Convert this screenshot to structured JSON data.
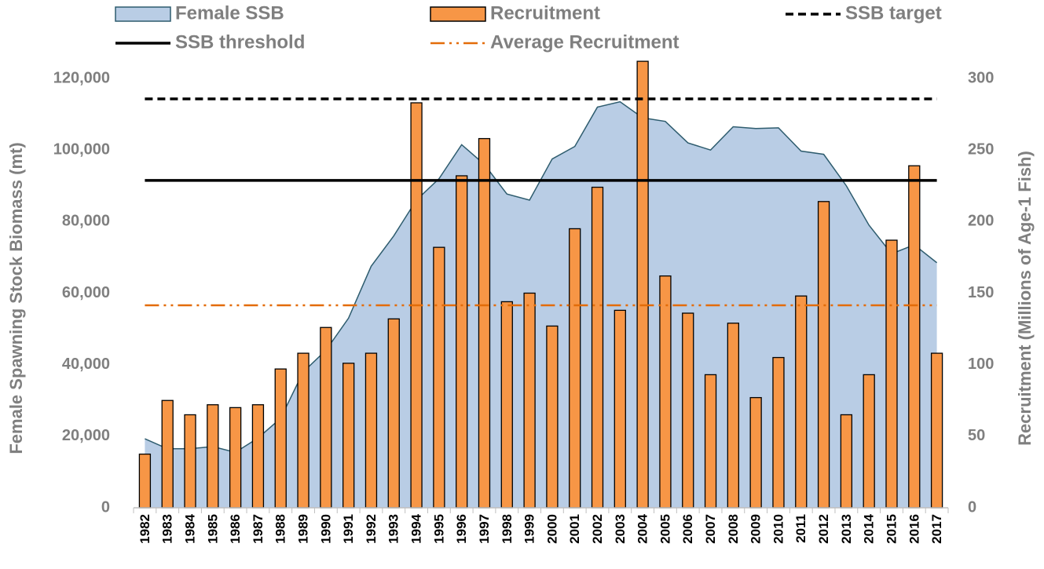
{
  "chart_data": {
    "type": "combo",
    "x_label_unused": null,
    "ylabel": "Female Spawning Stock Biomass (mt)",
    "y2label": "Recruitment (Millions of Age-1 Fish)",
    "categories": [
      "1982",
      "1983",
      "1984",
      "1985",
      "1986",
      "1987",
      "1988",
      "1989",
      "1990",
      "1991",
      "1992",
      "1993",
      "1994",
      "1995",
      "1996",
      "1997",
      "1998",
      "1999",
      "2000",
      "2001",
      "2002",
      "2003",
      "2004",
      "2005",
      "2006",
      "2007",
      "2008",
      "2009",
      "2010",
      "2011",
      "2012",
      "2013",
      "2014",
      "2015",
      "2016",
      "2017"
    ],
    "series": [
      {
        "name": "Female SSB",
        "type": "area",
        "color": "#b9cde5",
        "line_color": "#2e5c6e",
        "values": [
          19300,
          16500,
          16500,
          17100,
          15500,
          19500,
          25000,
          38000,
          44000,
          53000,
          67500,
          76000,
          86000,
          92000,
          101500,
          96000,
          87700,
          86000,
          97500,
          101000,
          112000,
          113500,
          109000,
          108000,
          102000,
          100000,
          106500,
          106000,
          106200,
          99700,
          98800,
          90000,
          79000,
          71000,
          73500,
          68500
        ]
      },
      {
        "name": "Recruitment",
        "type": "bar",
        "axis": "y2",
        "color": "#f79646",
        "values": [
          37.5,
          75,
          65,
          72,
          70,
          72,
          97,
          108,
          126,
          101,
          108,
          132,
          283,
          182,
          232,
          258,
          144,
          150,
          127,
          195,
          224,
          138,
          312,
          162,
          136,
          93,
          129,
          77,
          105,
          148,
          214,
          65,
          93,
          187,
          239,
          108
        ]
      }
    ],
    "reference_lines": [
      {
        "name": "SSB target",
        "value": 114300,
        "color": "#000000",
        "style": "dashed"
      },
      {
        "name": "SSB threshold",
        "value": 91500,
        "color": "#000000",
        "style": "solid"
      },
      {
        "name": "Average Recruitment",
        "value": 141.5,
        "axis": "y2",
        "color": "#e36c09",
        "style": "dashdot"
      }
    ],
    "ylim": [
      0,
      125000
    ],
    "yticks": [
      0,
      {
        "value": 20000,
        "label": "20,000"
      },
      {
        "value": 40000,
        "label": "40,000"
      },
      {
        "value": 60000,
        "label": "60,000"
      },
      {
        "value": 80000,
        "label": "80,000"
      },
      {
        "value": 100000,
        "label": "100,000"
      },
      {
        "value": 120000,
        "label": "120,000"
      }
    ],
    "y2lim": [
      0,
      312.5
    ],
    "y2ticks": [
      0,
      50,
      100,
      150,
      200,
      250,
      300
    ],
    "grid": false
  }
}
